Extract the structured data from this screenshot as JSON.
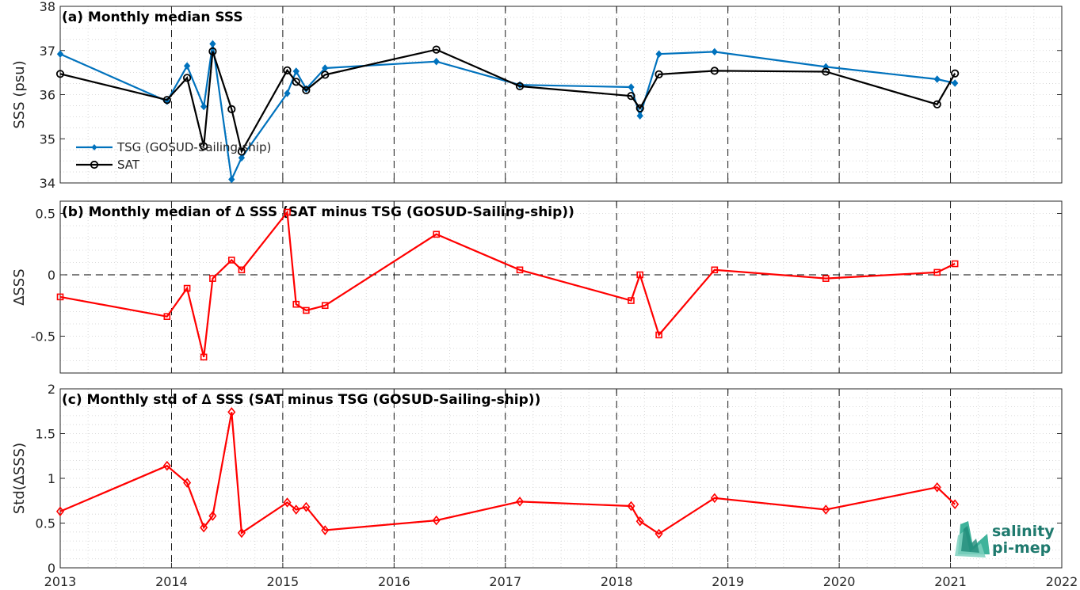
{
  "chart_data": [
    {
      "type": "line",
      "title": "(a) Monthly median SSS",
      "ylabel": "SSS (psu)",
      "xlim": [
        2013,
        2022
      ],
      "ylim": [
        34,
        38
      ],
      "yticks": [
        34,
        35,
        36,
        37,
        38
      ],
      "grid": true,
      "legend_position": "lower-left",
      "series": [
        {
          "name": "TSG (GOSUD-Sailing-ship)",
          "color": "#0072BD",
          "marker": "diamond-filled",
          "x": [
            2013.0,
            2013.96,
            2014.14,
            2014.29,
            2014.37,
            2014.54,
            2014.63,
            2015.04,
            2015.12,
            2015.21,
            2015.38,
            2016.38,
            2017.13,
            2018.13,
            2018.21,
            2018.38,
            2018.88,
            2019.88,
            2020.88,
            2021.04
          ],
          "y": [
            36.92,
            35.85,
            36.65,
            35.73,
            37.15,
            34.08,
            34.57,
            36.03,
            36.53,
            36.13,
            36.6,
            36.75,
            36.22,
            36.17,
            35.52,
            36.92,
            36.97,
            36.63,
            36.35,
            36.26
          ]
        },
        {
          "name": "SAT",
          "color": "#000000",
          "marker": "circle-open",
          "x": [
            2013.0,
            2013.96,
            2014.14,
            2014.29,
            2014.37,
            2014.54,
            2014.63,
            2015.04,
            2015.12,
            2015.21,
            2015.38,
            2016.38,
            2017.13,
            2018.13,
            2018.21,
            2018.38,
            2018.88,
            2019.88,
            2020.88,
            2021.04
          ],
          "y": [
            36.47,
            35.88,
            36.38,
            34.83,
            36.98,
            35.67,
            34.71,
            36.55,
            36.29,
            36.1,
            36.45,
            37.02,
            36.19,
            35.97,
            35.69,
            36.46,
            36.54,
            36.52,
            35.78,
            36.48
          ]
        }
      ]
    },
    {
      "type": "line",
      "title": "(b) Monthly median of ∆ SSS (SAT minus TSG (GOSUD-Sailing-ship))",
      "ylabel": "∆SSS",
      "xlim": [
        2013,
        2022
      ],
      "ylim": [
        -0.8,
        0.6
      ],
      "yticks": [
        -0.5,
        0,
        0.5
      ],
      "ytick_labels": [
        "-0.5",
        "0",
        "0.5"
      ],
      "grid": true,
      "zero_line": "dashed",
      "series": [
        {
          "color": "#FF0000",
          "marker": "square-open",
          "x": [
            2013.0,
            2013.96,
            2014.14,
            2014.29,
            2014.37,
            2014.54,
            2014.63,
            2015.04,
            2015.12,
            2015.21,
            2015.38,
            2016.38,
            2017.13,
            2018.13,
            2018.21,
            2018.38,
            2018.88,
            2019.88,
            2020.88,
            2021.04
          ],
          "y": [
            -0.18,
            -0.34,
            -0.11,
            -0.67,
            -0.03,
            0.12,
            0.04,
            0.51,
            -0.24,
            -0.29,
            -0.25,
            0.33,
            0.04,
            -0.21,
            0.0,
            -0.49,
            0.04,
            -0.03,
            0.02,
            0.09
          ]
        }
      ]
    },
    {
      "type": "line",
      "title": "(c) Monthly std of ∆ SSS (SAT minus TSG (GOSUD-Sailing-ship))",
      "ylabel": "Std(∆SSS)",
      "xlim": [
        2013,
        2022
      ],
      "ylim": [
        0,
        2
      ],
      "yticks": [
        0,
        0.5,
        1,
        1.5,
        2
      ],
      "ytick_labels": [
        "0",
        "0.5",
        "1",
        "1.5",
        "2"
      ],
      "grid": true,
      "series": [
        {
          "color": "#FF0000",
          "marker": "diamond-open",
          "x": [
            2013.0,
            2013.96,
            2014.14,
            2014.29,
            2014.37,
            2014.54,
            2014.63,
            2015.04,
            2015.12,
            2015.21,
            2015.38,
            2016.38,
            2017.13,
            2018.13,
            2018.21,
            2018.38,
            2018.88,
            2019.88,
            2020.88,
            2021.04
          ],
          "y": [
            0.63,
            1.14,
            0.95,
            0.45,
            0.58,
            1.74,
            0.39,
            0.73,
            0.65,
            0.68,
            0.42,
            0.53,
            0.74,
            0.69,
            0.52,
            0.38,
            0.78,
            0.65,
            0.9,
            0.71
          ]
        }
      ]
    }
  ],
  "xaxis": {
    "ticks": [
      2013,
      2014,
      2015,
      2016,
      2017,
      2018,
      2019,
      2020,
      2021,
      2022
    ],
    "tick_labels": [
      "2013",
      "2014",
      "2015",
      "2016",
      "2017",
      "2018",
      "2019",
      "2020",
      "2021",
      "2022"
    ],
    "year_separators": "dashed"
  },
  "logo": {
    "line1": "salinity",
    "line2": "pi-mep",
    "color": "#1f7a6e"
  }
}
